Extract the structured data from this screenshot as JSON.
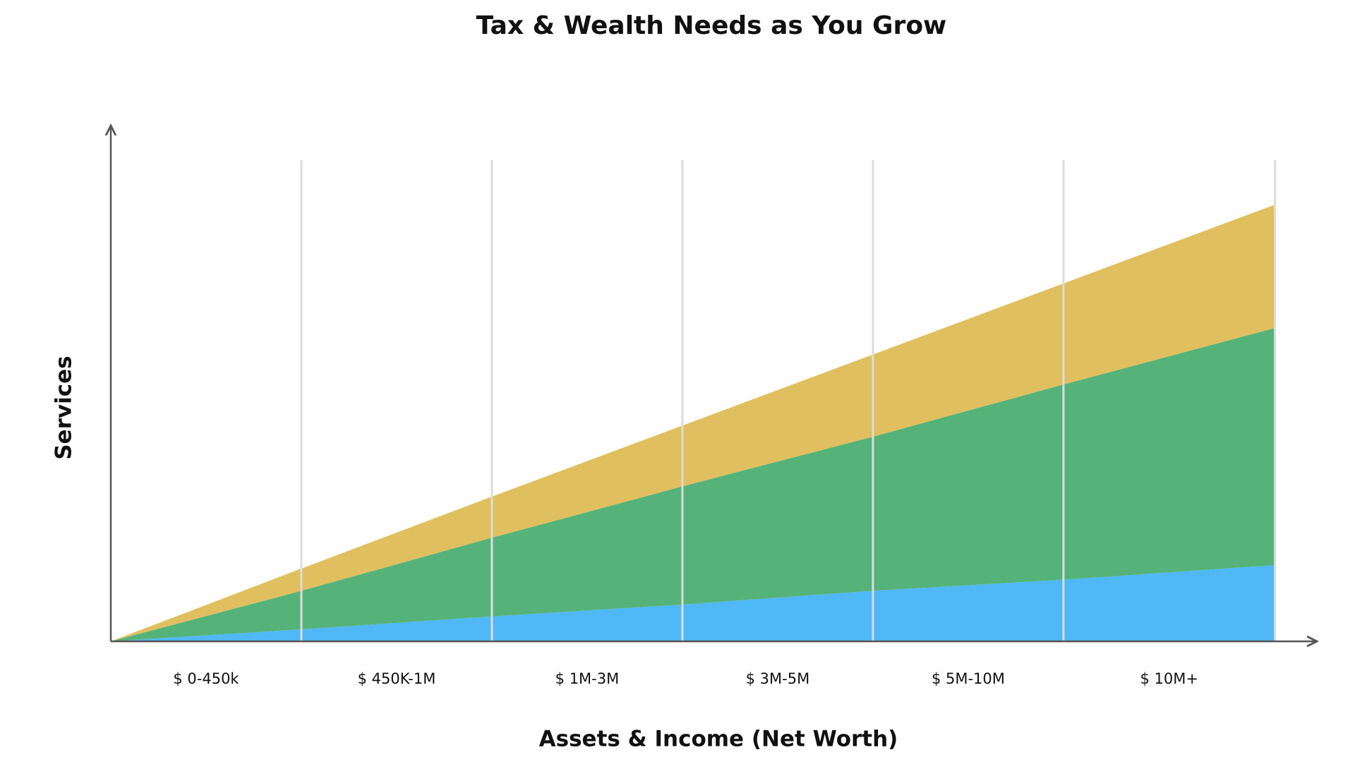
{
  "chart_data": {
    "type": "stacked_area",
    "title": "Tax & Wealth Needs as You Grow",
    "x_label": "Assets & Income (Net Worth)",
    "y_label": "Services",
    "categories": [
      "$ 0-450k",
      "$ 450K-1M",
      "$ 1M-3M",
      "$ 3M-5M",
      "$ 5M-10M",
      "$ 10M+"
    ],
    "x": [
      0,
      1,
      2,
      3,
      4,
      5,
      6.11
    ],
    "xlim": [
      0,
      6.33
    ],
    "ylim": [
      0,
      604
    ],
    "grid": true,
    "series": [
      {
        "color": "#50b8f7",
        "values": [
          0,
          14,
          29,
          43,
          59,
          72,
          89
        ]
      },
      {
        "color": "#55b37a",
        "values": [
          0,
          45,
          92,
          138,
          180,
          228,
          277
        ]
      },
      {
        "color": "#e0bf5e",
        "values": [
          0,
          26,
          48,
          71,
          96,
          118,
          144
        ]
      }
    ]
  }
}
